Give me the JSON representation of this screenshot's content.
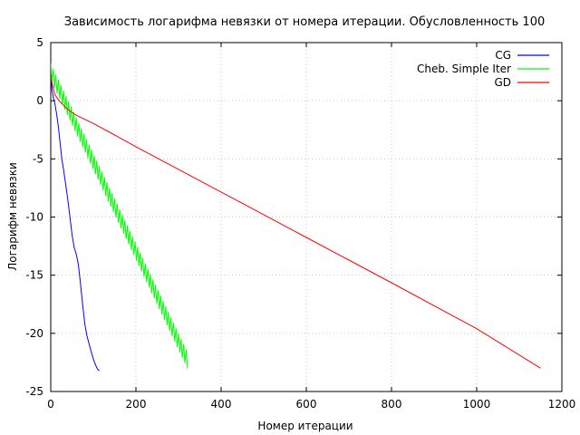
{
  "chart_data": {
    "type": "line",
    "title": "Зависимость логарифма невязки от номера итерации. Обусловленность 100",
    "xlabel": "Номер итерации",
    "ylabel": "Логарифм невязки",
    "xlim": [
      0,
      1200
    ],
    "ylim": [
      -25,
      5
    ],
    "xticks": [
      0,
      200,
      400,
      600,
      800,
      1000,
      1200
    ],
    "yticks": [
      5,
      0,
      -5,
      -10,
      -15,
      -20,
      -25
    ],
    "grid": true,
    "legend_position": "top-right",
    "series": [
      {
        "name": "CG",
        "color": "#0000ff",
        "x": [
          0,
          3,
          6,
          10,
          14,
          18,
          22,
          26,
          30,
          35,
          40,
          45,
          50,
          55,
          60,
          65,
          70,
          75,
          80,
          85,
          90,
          95,
          100,
          105,
          110,
          114
        ],
        "y": [
          2.0,
          0.9,
          0.3,
          -0.3,
          -1.2,
          -2.3,
          -3.6,
          -5.0,
          -5.9,
          -7.2,
          -8.5,
          -10.0,
          -11.5,
          -12.6,
          -13.2,
          -14.1,
          -15.8,
          -17.6,
          -19.2,
          -20.2,
          -20.9,
          -21.6,
          -22.2,
          -22.7,
          -23.1,
          -23.2
        ]
      },
      {
        "name": "Cheb. Simple Iter",
        "color": "#00ff00",
        "x_start": 0,
        "x_end": 322,
        "y_start": 2.5,
        "y_end": -22.4,
        "oscillation_amplitude": 0.7,
        "oscillation_period": 6
      },
      {
        "name": "GD",
        "color": "#ff0000",
        "x": [
          0,
          10,
          20,
          30,
          40,
          50,
          60,
          80,
          100,
          150,
          200,
          400,
          600,
          800,
          1000,
          1150
        ],
        "y": [
          2.0,
          0.5,
          0.0,
          -0.4,
          -0.75,
          -1.0,
          -1.25,
          -1.6,
          -1.95,
          -2.95,
          -3.95,
          -7.85,
          -11.75,
          -15.65,
          -19.6,
          -23.0
        ]
      }
    ]
  }
}
